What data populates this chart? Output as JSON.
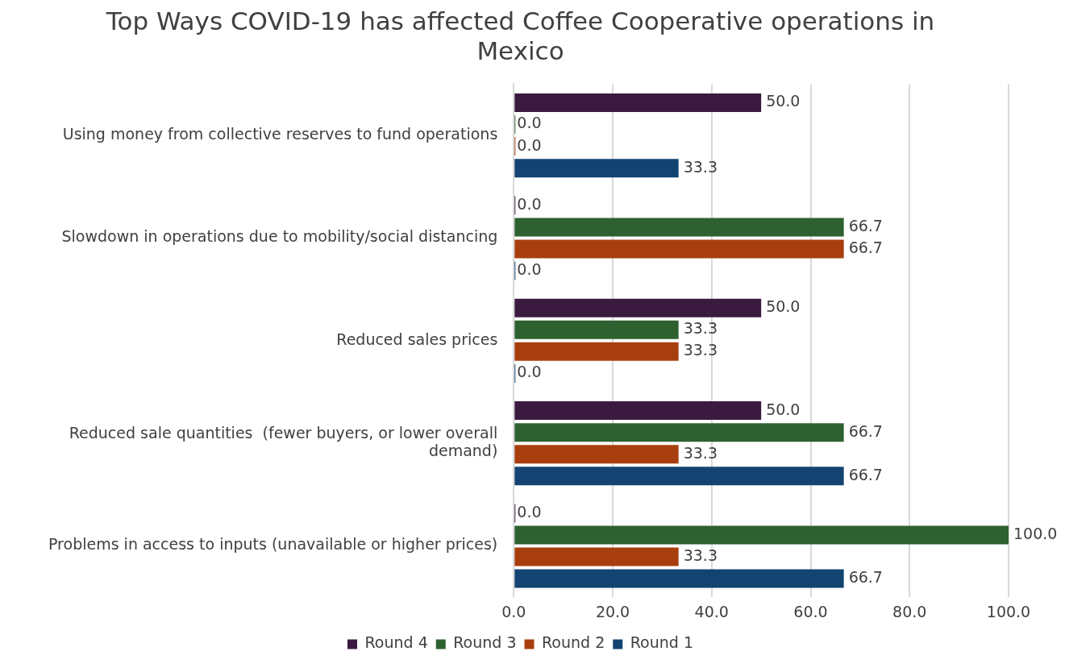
{
  "chart_data": {
    "type": "bar",
    "orientation": "horizontal",
    "title": "Top Ways COVID-19 has affected Coffee Cooperative operations in Mexico",
    "categories": [
      "Using money from collective reserves to fund operations",
      "Slowdown in operations due to mobility/social distancing",
      "Reduced sales prices",
      "Reduced sale quantities  (fewer buyers, or lower overall demand)",
      "Problems in access to inputs (unavailable or higher prices)"
    ],
    "series": [
      {
        "name": "Round 4",
        "color": "#3b1a40",
        "values": [
          50,
          0,
          50,
          50,
          0
        ],
        "value_labels": [
          "50.0",
          "0.0",
          "50.0",
          "50.0",
          "0.0"
        ]
      },
      {
        "name": "Round 3",
        "color": "#2e6130",
        "values": [
          0,
          66.7,
          33.3,
          66.7,
          100
        ],
        "value_labels": [
          "0.0",
          "66.7",
          "33.3",
          "66.7",
          "100.0"
        ]
      },
      {
        "name": "Round 2",
        "color": "#a83e0e",
        "values": [
          0,
          66.7,
          33.3,
          33.3,
          33.3
        ],
        "value_labels": [
          "0.0",
          "66.7",
          "33.3",
          "33.3",
          "33.3"
        ]
      },
      {
        "name": "Round 1",
        "color": "#134371",
        "values": [
          33.3,
          0,
          0,
          66.7,
          66.7
        ],
        "value_labels": [
          "33.3",
          "0.0",
          "0.0",
          "66.7",
          "66.7"
        ]
      }
    ],
    "xlim": [
      0,
      100
    ],
    "xticks": [
      {
        "value": 0,
        "label": "0.0"
      },
      {
        "value": 20,
        "label": "20.0"
      },
      {
        "value": 40,
        "label": "40.0"
      },
      {
        "value": 60,
        "label": "60.0"
      },
      {
        "value": 80,
        "label": "80.0"
      },
      {
        "value": 100,
        "label": "100.0"
      }
    ],
    "grid": "x",
    "legend": "bottom"
  }
}
